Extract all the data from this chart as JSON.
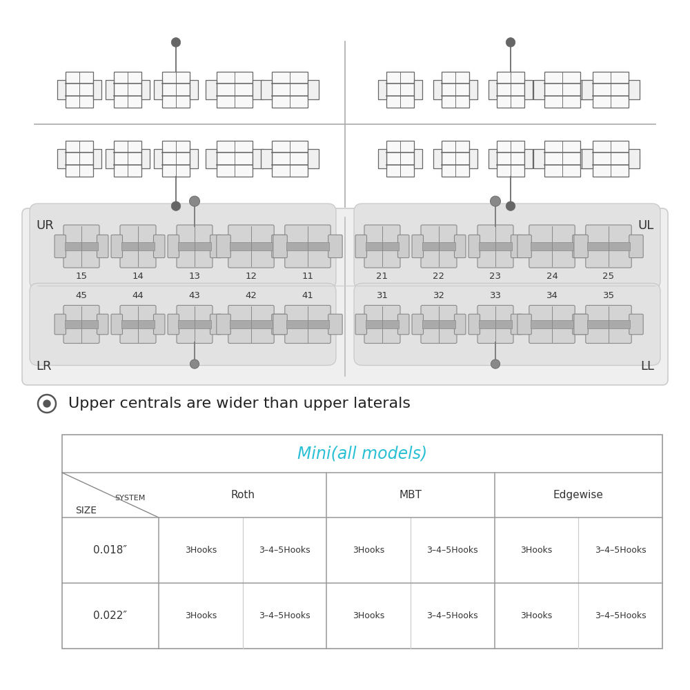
{
  "bg_color": "#ffffff",
  "table_title": "Mini(all models)",
  "table_title_color": "#29bfd4",
  "systems": [
    "Roth",
    "MBT",
    "Edgewise"
  ],
  "sizes": [
    "0.018″",
    "0.022″"
  ],
  "hook_options": [
    "3Hooks",
    "3–4–5Hooks"
  ],
  "note_text": "Upper centrals are wider than upper laterals",
  "ur_label": "UR",
  "ul_label": "UL",
  "lr_label": "LR",
  "ll_label": "LL",
  "upper_right_numbers": [
    "15",
    "14",
    "13",
    "12",
    "11"
  ],
  "upper_left_numbers": [
    "21",
    "22",
    "23",
    "24",
    "25"
  ],
  "lower_right_numbers": [
    "45",
    "44",
    "43",
    "42",
    "41"
  ],
  "lower_left_numbers": [
    "31",
    "32",
    "33",
    "34",
    "35"
  ],
  "text_color": "#333333",
  "tray_bg": "#efefef",
  "tray_inner_bg": "#e2e2e2",
  "bracket_face": "#d4d4d4",
  "bracket_edge": "#888888",
  "bracket_slot": "#aaaaaa",
  "schematic_color": "#666666"
}
